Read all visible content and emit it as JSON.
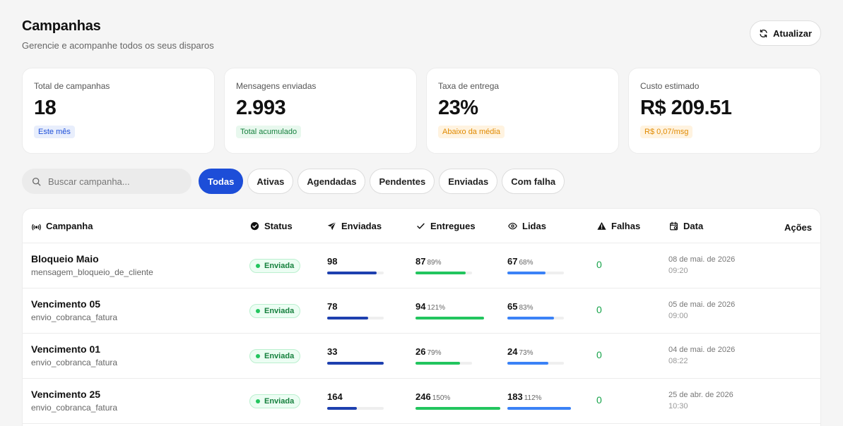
{
  "header": {
    "title": "Campanhas",
    "subtitle": "Gerencie e acompanhe todos os seus disparos",
    "refresh_label": "Atualizar"
  },
  "stats": [
    {
      "label": "Total de campanhas",
      "value": "18",
      "badge": "Este mês",
      "badge_bg": "#e8eefc",
      "badge_color": "#1d4ed8"
    },
    {
      "label": "Mensagens enviadas",
      "value": "2.993",
      "badge": "Total acumulado",
      "badge_bg": "#e8f8ee",
      "badge_color": "#15803d"
    },
    {
      "label": "Taxa de entrega",
      "value": "23%",
      "badge": "Abaixo da média",
      "badge_bg": "#fff3e0",
      "badge_color": "#e08a00"
    },
    {
      "label": "Custo estimado",
      "value": "R$ 209.51",
      "badge": "R$ 0,07/msg",
      "badge_bg": "#fff3e0",
      "badge_color": "#e08a00"
    }
  ],
  "search": {
    "placeholder": "Buscar campanha..."
  },
  "filters": [
    {
      "label": "Todas",
      "active": true
    },
    {
      "label": "Ativas",
      "active": false
    },
    {
      "label": "Agendadas",
      "active": false
    },
    {
      "label": "Pendentes",
      "active": false
    },
    {
      "label": "Enviadas",
      "active": false
    },
    {
      "label": "Com falha",
      "active": false
    }
  ],
  "table": {
    "columns": {
      "campanha": "Campanha",
      "status": "Status",
      "enviadas": "Enviadas",
      "entregues": "Entregues",
      "lidas": "Lidas",
      "falhas": "Falhas",
      "data": "Data",
      "acoes": "Ações"
    },
    "colors": {
      "enviadas": "#1e40af",
      "entregues": "#22c55e",
      "lidas": "#3b82f6"
    },
    "rows": [
      {
        "name": "Bloqueio Maio",
        "slug": "mensagem_bloqueio_de_cliente",
        "status": "Enviada",
        "enviadas": "98",
        "enviadas_fill": 0.87,
        "entregues": "87",
        "entregues_pct": "89%",
        "entregues_fill": 0.89,
        "lidas": "67",
        "lidas_pct": "68%",
        "lidas_fill": 0.68,
        "falhas": "0",
        "date": "08 de mai. de 2026",
        "time": "09:20"
      },
      {
        "name": "Vencimento 05",
        "slug": "envio_cobranca_fatura",
        "status": "Enviada",
        "enviadas": "78",
        "enviadas_fill": 0.72,
        "entregues": "94",
        "entregues_pct": "121%",
        "entregues_fill": 1.21,
        "lidas": "65",
        "lidas_pct": "83%",
        "lidas_fill": 0.83,
        "falhas": "0",
        "date": "05 de mai. de 2026",
        "time": "09:00"
      },
      {
        "name": "Vencimento 01",
        "slug": "envio_cobranca_fatura",
        "status": "Enviada",
        "enviadas": "33",
        "enviadas_fill": 1.0,
        "entregues": "26",
        "entregues_pct": "79%",
        "entregues_fill": 0.79,
        "lidas": "24",
        "lidas_pct": "73%",
        "lidas_fill": 0.73,
        "falhas": "0",
        "date": "04 de mai. de 2026",
        "time": "08:22"
      },
      {
        "name": "Vencimento 25",
        "slug": "envio_cobranca_fatura",
        "status": "Enviada",
        "enviadas": "164",
        "enviadas_fill": 0.52,
        "entregues": "246",
        "entregues_pct": "150%",
        "entregues_fill": 1.5,
        "lidas": "183",
        "lidas_pct": "112%",
        "lidas_fill": 1.12,
        "falhas": "0",
        "date": "25 de abr. de 2026",
        "time": "10:30"
      }
    ]
  }
}
